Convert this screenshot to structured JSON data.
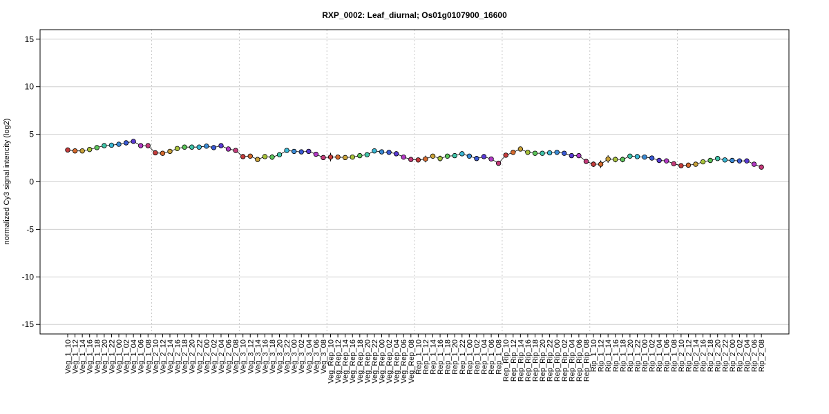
{
  "chart_data": {
    "type": "scatter",
    "title": "RXP_0002: Leaf_diurnal; Os01g0107900_16600",
    "xlabel": "",
    "ylabel": "normalized Cy3 signal intencity (log2)",
    "ylim": [
      -16,
      16
    ],
    "yticks": [
      -15,
      -10,
      -5,
      0,
      5,
      10,
      15
    ],
    "grid": "horizontal lines at y ticks; dotted vertical separators between sample groups",
    "group_separators_after_index": [
      11,
      23,
      35,
      47,
      59,
      71,
      83
    ],
    "categories": [
      "Veg_1_10",
      "Veg_1_12",
      "Veg_1_14",
      "Veg_1_16",
      "Veg_1_18",
      "Veg_1_20",
      "Veg_1_22",
      "Veg_1_00",
      "Veg_1_02",
      "Veg_1_04",
      "Veg_1_06",
      "Veg_1_08",
      "Veg_2_10",
      "Veg_2_12",
      "Veg_2_14",
      "Veg_2_16",
      "Veg_2_18",
      "Veg_2_20",
      "Veg_2_22",
      "Veg_2_00",
      "Veg_2_02",
      "Veg_2_04",
      "Veg_2_06",
      "Veg_2_08",
      "Veg_3_10",
      "Veg_3_12",
      "Veg_3_14",
      "Veg_3_16",
      "Veg_3_18",
      "Veg_3_20",
      "Veg_3_22",
      "Veg_3_00",
      "Veg_3_02",
      "Veg_3_04",
      "Veg_3_06",
      "Veg_3_08",
      "Veg_Rep_10",
      "Veg_Rep_12",
      "Veg_Rep_14",
      "Veg_Rep_16",
      "Veg_Rep_18",
      "Veg_Rep_20",
      "Veg_Rep_22",
      "Veg_Rep_00",
      "Veg_Rep_02",
      "Veg_Rep_04",
      "Veg_Rep_06",
      "Veg_Rep_08",
      "Rep_1_10",
      "Rep_1_12",
      "Rep_1_14",
      "Rep_1_16",
      "Rep_1_18",
      "Rep_1_20",
      "Rep_1_22",
      "Rep_1_00",
      "Rep_1_02",
      "Rep_1_04",
      "Rep_1_06",
      "Rep_1_08",
      "Rep_Rip_10",
      "Rep_Rip_12",
      "Rep_Rip_14",
      "Rep_Rip_16",
      "Rep_Rip_18",
      "Rep_Rip_20",
      "Rep_Rip_22",
      "Rep_Rip_00",
      "Rep_Rip_02",
      "Rep_Rip_04",
      "Rep_Rip_06",
      "Rep_Rip_08",
      "Rip_1_10",
      "Rip_1_12",
      "Rip_1_14",
      "Rip_1_16",
      "Rip_1_18",
      "Rip_1_20",
      "Rip_1_22",
      "Rip_1_00",
      "Rip_1_02",
      "Rip_1_04",
      "Rip_1_06",
      "Rip_1_08",
      "Rip_2_10",
      "Rip_2_12",
      "Rip_2_14",
      "Rip_2_16",
      "Rip_2_18",
      "Rip_2_20",
      "Rip_2_22",
      "Rip_2_00",
      "Rip_2_02",
      "Rip_2_04",
      "Rip_2_06",
      "Rip_2_08"
    ],
    "values": [
      3.35,
      3.25,
      3.25,
      3.4,
      3.6,
      3.8,
      3.85,
      3.95,
      4.1,
      4.25,
      3.8,
      3.8,
      3.05,
      3.0,
      3.2,
      3.5,
      3.65,
      3.65,
      3.65,
      3.75,
      3.6,
      3.8,
      3.45,
      3.3,
      2.65,
      2.7,
      2.35,
      2.65,
      2.6,
      2.85,
      3.3,
      3.2,
      3.15,
      3.2,
      2.9,
      2.55,
      2.6,
      2.6,
      2.55,
      2.6,
      2.75,
      2.85,
      3.25,
      3.15,
      3.1,
      2.95,
      2.6,
      2.35,
      2.3,
      2.4,
      2.7,
      2.45,
      2.7,
      2.75,
      2.95,
      2.7,
      2.45,
      2.65,
      2.4,
      1.95,
      2.8,
      3.1,
      3.45,
      3.1,
      3.0,
      3.0,
      3.05,
      3.1,
      3.0,
      2.75,
      2.75,
      2.15,
      1.85,
      1.85,
      2.4,
      2.35,
      2.35,
      2.7,
      2.65,
      2.6,
      2.5,
      2.25,
      2.2,
      1.9,
      1.7,
      1.75,
      1.85,
      2.1,
      2.25,
      2.45,
      2.3,
      2.25,
      2.2,
      2.2,
      1.85,
      1.55
    ],
    "errors": [
      0.1,
      0.1,
      0.08,
      0.1,
      0.1,
      0.1,
      0.1,
      0.1,
      0.1,
      0.1,
      0.1,
      0.1,
      0.25,
      0.1,
      0.1,
      0.1,
      0.1,
      0.1,
      0.1,
      0.1,
      0.25,
      0.2,
      0.1,
      0.1,
      0.1,
      0.1,
      0.1,
      0.1,
      0.3,
      0.1,
      0.15,
      0.25,
      0.15,
      0.1,
      0.1,
      0.1,
      0.45,
      0.2,
      0.1,
      0.1,
      0.1,
      0.1,
      0.1,
      0.1,
      0.1,
      0.1,
      0.1,
      0.1,
      0.1,
      0.35,
      0.15,
      0.3,
      0.1,
      0.1,
      0.1,
      0.1,
      0.1,
      0.1,
      0.1,
      0.15,
      0.1,
      0.1,
      0.1,
      0.1,
      0.1,
      0.1,
      0.1,
      0.1,
      0.1,
      0.1,
      0.1,
      0.1,
      0.3,
      0.4,
      0.4,
      0.3,
      0.3,
      0.1,
      0.1,
      0.1,
      0.1,
      0.1,
      0.1,
      0.1,
      0.1,
      0.1,
      0.1,
      0.1,
      0.1,
      0.1,
      0.1,
      0.1,
      0.1,
      0.1,
      0.1,
      0.1
    ],
    "colors": [
      "#c43c3c",
      "#d46a2e",
      "#c9a23a",
      "#a8c23a",
      "#5cc45a",
      "#3fc4a8",
      "#3ab8d4",
      "#3a8ad4",
      "#3a5ad4",
      "#5a3ad4",
      "#b23ac4",
      "#c43a7a",
      "#c43c3c",
      "#d46a2e",
      "#c9a23a",
      "#a8c23a",
      "#5cc45a",
      "#3fc4a8",
      "#3ab8d4",
      "#3a8ad4",
      "#3a5ad4",
      "#5a3ad4",
      "#b23ac4",
      "#c43a7a",
      "#c43c3c",
      "#d46a2e",
      "#c9a23a",
      "#a8c23a",
      "#5cc45a",
      "#3fc4a8",
      "#3ab8d4",
      "#3a8ad4",
      "#3a5ad4",
      "#5a3ad4",
      "#b23ac4",
      "#c43a7a",
      "#c43c3c",
      "#d46a2e",
      "#c9a23a",
      "#a8c23a",
      "#5cc45a",
      "#3fc4a8",
      "#3ab8d4",
      "#3a8ad4",
      "#3a5ad4",
      "#5a3ad4",
      "#b23ac4",
      "#c43a7a",
      "#c43c3c",
      "#d46a2e",
      "#c9a23a",
      "#a8c23a",
      "#5cc45a",
      "#3fc4a8",
      "#3ab8d4",
      "#3a8ad4",
      "#3a5ad4",
      "#5a3ad4",
      "#b23ac4",
      "#c43a7a",
      "#c43c3c",
      "#d46a2e",
      "#c9a23a",
      "#a8c23a",
      "#5cc45a",
      "#3fc4a8",
      "#3ab8d4",
      "#3a8ad4",
      "#3a5ad4",
      "#5a3ad4",
      "#b23ac4",
      "#c43a7a",
      "#c43c3c",
      "#d46a2e",
      "#c9a23a",
      "#a8c23a",
      "#5cc45a",
      "#3fc4a8",
      "#3ab8d4",
      "#3a8ad4",
      "#3a5ad4",
      "#5a3ad4",
      "#b23ac4",
      "#c43a7a",
      "#c43c3c",
      "#d46a2e",
      "#c9a23a",
      "#a8c23a",
      "#5cc45a",
      "#3fc4a8",
      "#3ab8d4",
      "#3a8ad4",
      "#3a5ad4",
      "#5a3ad4",
      "#b23ac4",
      "#c43a7a"
    ]
  }
}
